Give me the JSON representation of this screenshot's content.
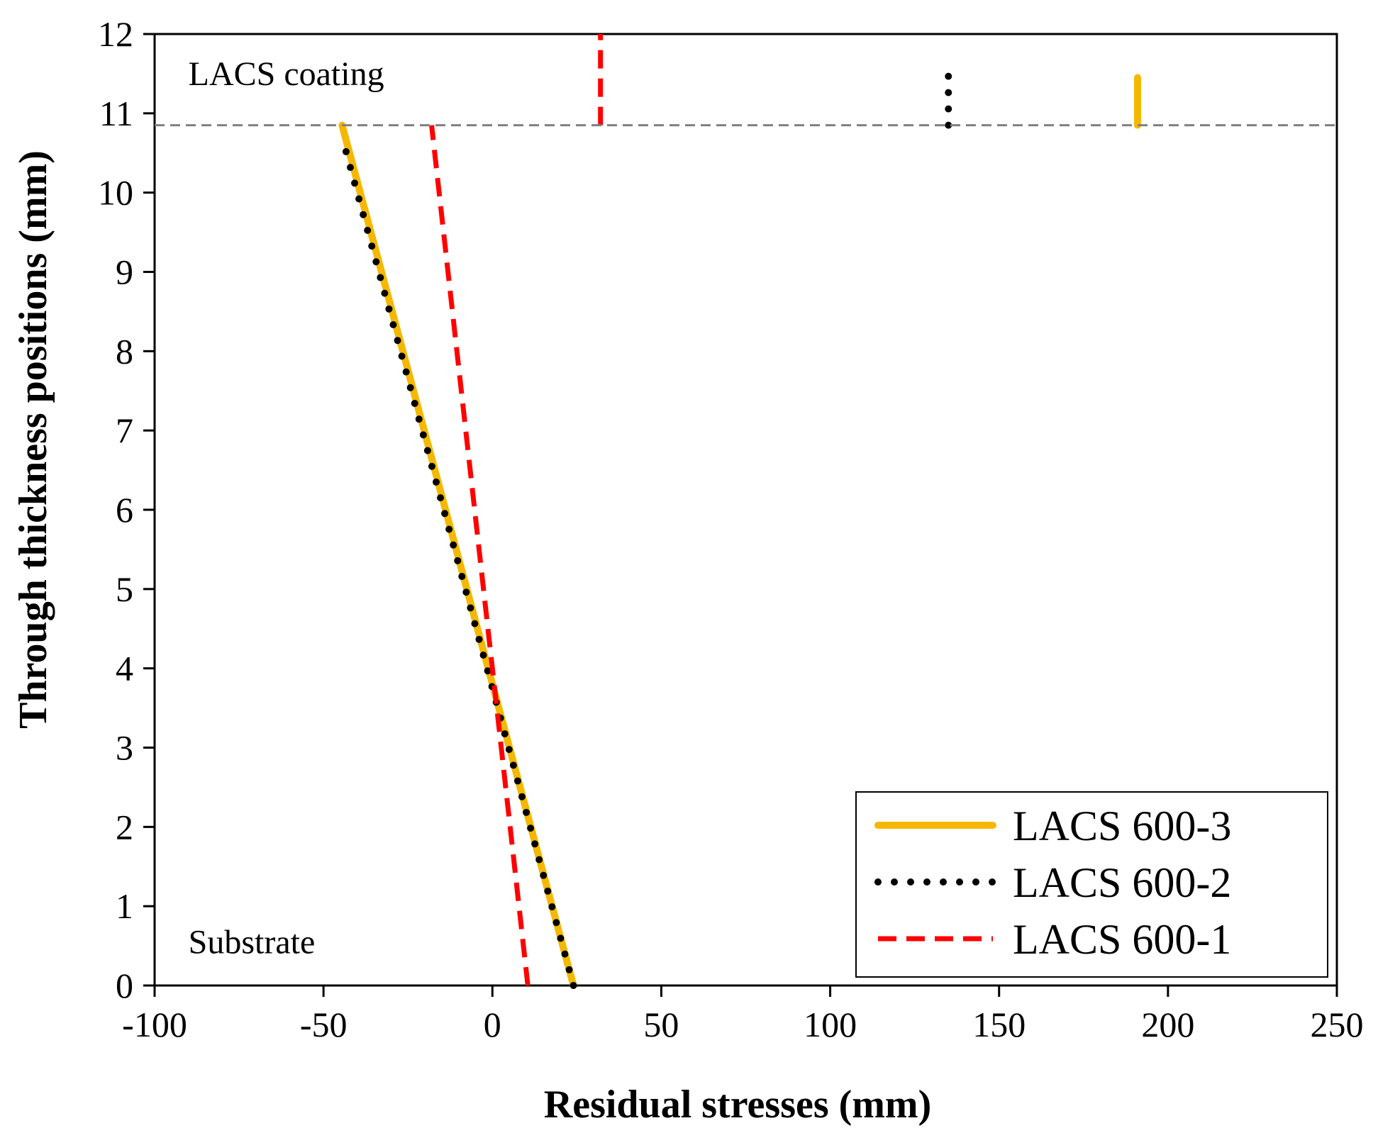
{
  "chart_data": {
    "type": "line",
    "title": "",
    "xlabel": "Residual stresses (mm)",
    "ylabel": "Through thickness positions (mm)",
    "xlim": [
      -100,
      250
    ],
    "ylim": [
      0,
      12
    ],
    "x_ticks": [
      "-100",
      "-50",
      "0",
      "50",
      "100",
      "150",
      "200",
      "250"
    ],
    "y_ticks": [
      "0",
      "1",
      "2",
      "3",
      "4",
      "5",
      "6",
      "7",
      "8",
      "9",
      "10",
      "11",
      "12"
    ],
    "grid": false,
    "interface_y": 10.85,
    "annotations": [
      {
        "text": "LACS coating",
        "x": -90,
        "y": 11.5
      },
      {
        "text": "Substrate",
        "x": -90,
        "y": 0.55
      }
    ],
    "legend_position": "bottom-right",
    "series": [
      {
        "name": "LACS 600-3",
        "color": "#F5B800",
        "style": "solid",
        "substrate": [
          [
            24,
            0
          ],
          [
            -44.5,
            10.85
          ]
        ],
        "coating": [
          [
            191,
            10.85
          ],
          [
            191,
            11.45
          ]
        ]
      },
      {
        "name": "LACS 600-2",
        "color": "#000000",
        "style": "dotted",
        "substrate": [
          [
            24,
            0
          ],
          [
            -44.5,
            10.7
          ]
        ],
        "coating": [
          [
            135,
            10.85
          ],
          [
            135,
            11.6
          ]
        ]
      },
      {
        "name": "LACS 600-1",
        "color": "#FF0000",
        "style": "dashed",
        "substrate": [
          [
            10.5,
            0
          ],
          [
            -18,
            10.85
          ]
        ],
        "coating": [
          [
            32,
            10.85
          ],
          [
            32,
            12
          ]
        ]
      }
    ]
  }
}
